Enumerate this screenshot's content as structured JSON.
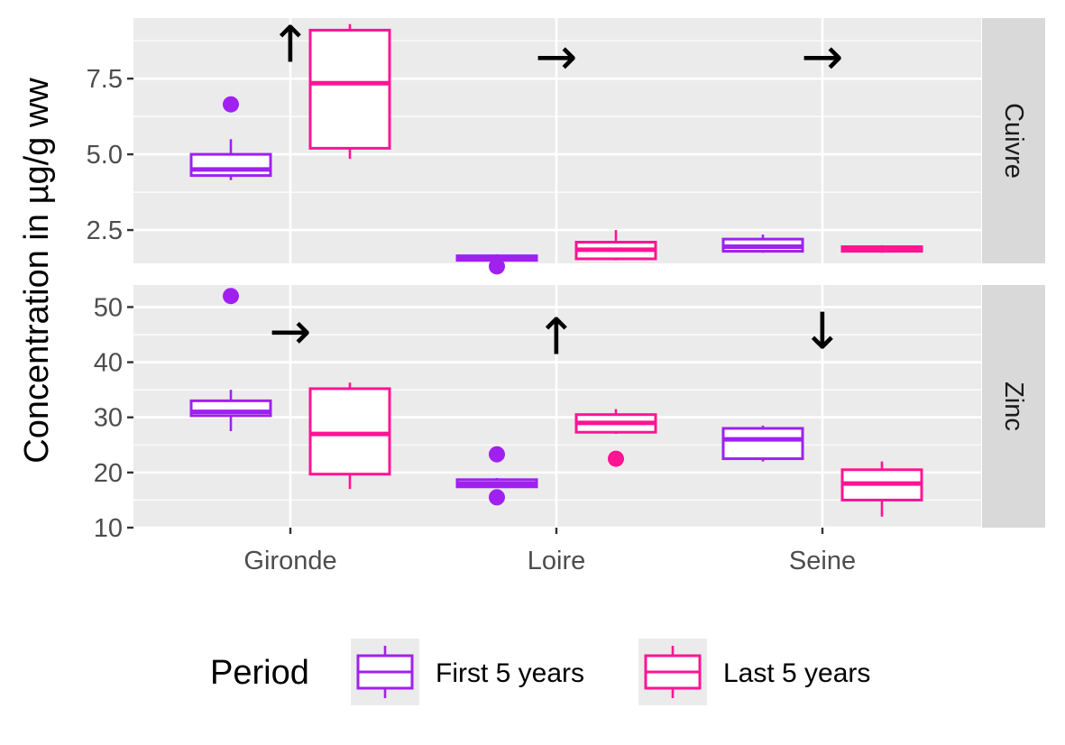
{
  "chart_data": {
    "type": "boxplot",
    "title": "",
    "xlabel": "",
    "ylabel": "Concentration in µg/g ww",
    "categories": [
      "Gironde",
      "Loire",
      "Seine"
    ],
    "grid": true,
    "legend": {
      "title": "Period",
      "position": "bottom",
      "entries": [
        "First 5 years",
        "Last 5 years"
      ]
    },
    "colors": {
      "First 5 years": "#a020f0",
      "Last 5 years": "#ff1493"
    },
    "facets": [
      {
        "label": "Cuivre",
        "ylim": [
          1.4,
          9.5
        ],
        "yticks": [
          2.5,
          5.0,
          7.5
        ],
        "ytick_labels": [
          "2.5",
          "5.0",
          "7.5"
        ],
        "boxes": [
          {
            "category": "Gironde",
            "period": "First 5 years",
            "min": 4.15,
            "q1": 4.3,
            "median": 4.5,
            "q3": 5.0,
            "max": 5.5,
            "outliers": [
              6.65
            ]
          },
          {
            "category": "Gironde",
            "period": "Last 5 years",
            "min": 4.85,
            "q1": 5.2,
            "median": 7.35,
            "q3": 9.1,
            "max": 9.3,
            "outliers": []
          },
          {
            "category": "Loire",
            "period": "First 5 years",
            "min": 1.45,
            "q1": 1.5,
            "median": 1.6,
            "q3": 1.65,
            "max": 1.7,
            "outliers": [
              1.3
            ]
          },
          {
            "category": "Loire",
            "period": "Last 5 years",
            "min": 1.5,
            "q1": 1.55,
            "median": 1.85,
            "q3": 2.1,
            "max": 2.5,
            "outliers": []
          },
          {
            "category": "Seine",
            "period": "First 5 years",
            "min": 1.75,
            "q1": 1.8,
            "median": 1.95,
            "q3": 2.2,
            "max": 2.35,
            "outliers": []
          },
          {
            "category": "Seine",
            "period": "Last 5 years",
            "min": 1.75,
            "q1": 1.8,
            "median": 1.85,
            "q3": 1.95,
            "max": 2.0,
            "outliers": []
          }
        ],
        "trends": [
          {
            "category": "Gironde",
            "direction": "up",
            "symbol": "↑",
            "y": 8.6
          },
          {
            "category": "Loire",
            "direction": "flat",
            "symbol": "→",
            "y": 8.2
          },
          {
            "category": "Seine",
            "direction": "flat",
            "symbol": "→",
            "y": 8.2
          }
        ]
      },
      {
        "label": "Zinc",
        "ylim": [
          10,
          54
        ],
        "yticks": [
          10,
          20,
          30,
          40,
          50
        ],
        "ytick_labels": [
          "10",
          "20",
          "30",
          "40",
          "50"
        ],
        "boxes": [
          {
            "category": "Gironde",
            "period": "First 5 years",
            "min": 27.5,
            "q1": 30.3,
            "median": 31.0,
            "q3": 33.0,
            "max": 35.0,
            "outliers": [
              52.0
            ]
          },
          {
            "category": "Gironde",
            "period": "Last 5 years",
            "min": 17.0,
            "q1": 19.7,
            "median": 27.0,
            "q3": 35.2,
            "max": 36.3,
            "outliers": []
          },
          {
            "category": "Loire",
            "period": "First 5 years",
            "min": 17.2,
            "q1": 17.4,
            "median": 18.0,
            "q3": 18.7,
            "max": 19.0,
            "outliers": [
              23.3,
              15.5
            ]
          },
          {
            "category": "Loire",
            "period": "Last 5 years",
            "min": 27.0,
            "q1": 27.3,
            "median": 29.0,
            "q3": 30.5,
            "max": 31.5,
            "outliers": [
              22.5
            ]
          },
          {
            "category": "Seine",
            "period": "First 5 years",
            "min": 22.0,
            "q1": 22.5,
            "median": 26.0,
            "q3": 28.0,
            "max": 28.5,
            "outliers": []
          },
          {
            "category": "Seine",
            "period": "Last 5 years",
            "min": 12.0,
            "q1": 15.0,
            "median": 18.0,
            "q3": 20.5,
            "max": 22.0,
            "outliers": []
          }
        ],
        "trends": [
          {
            "category": "Gironde",
            "direction": "flat",
            "symbol": "→",
            "y": 45.5
          },
          {
            "category": "Loire",
            "direction": "up",
            "symbol": "↑",
            "y": 44.5
          },
          {
            "category": "Seine",
            "direction": "down",
            "symbol": "↓",
            "y": 45.5
          }
        ]
      }
    ]
  }
}
